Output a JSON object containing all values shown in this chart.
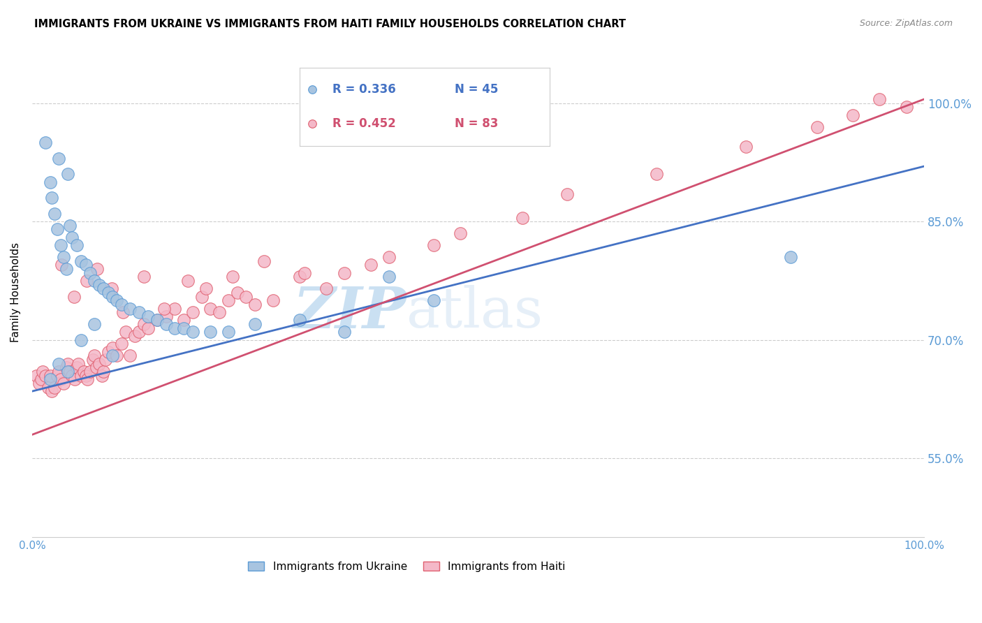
{
  "title": "IMMIGRANTS FROM UKRAINE VS IMMIGRANTS FROM HAITI FAMILY HOUSEHOLDS CORRELATION CHART",
  "source": "Source: ZipAtlas.com",
  "ylabel": "Family Households",
  "y_ticks_right": [
    55.0,
    70.0,
    85.0,
    100.0
  ],
  "x_range": [
    0.0,
    100.0
  ],
  "y_range": [
    45.0,
    107.0
  ],
  "ukraine_color": "#a8c4e0",
  "ukraine_edge_color": "#5b9bd5",
  "haiti_color": "#f4b8c8",
  "haiti_edge_color": "#e06070",
  "line_ukraine_color": "#4472c4",
  "line_haiti_color": "#d05070",
  "legend_R_ukraine": "R = 0.336",
  "legend_N_ukraine": "N = 45",
  "legend_R_haiti": "R = 0.452",
  "legend_N_haiti": "N = 83",
  "ukraine_x": [
    1.5,
    2.0,
    2.2,
    2.5,
    2.8,
    3.0,
    3.2,
    3.5,
    3.8,
    4.0,
    4.2,
    4.5,
    5.0,
    5.5,
    6.0,
    6.5,
    7.0,
    7.5,
    8.0,
    8.5,
    9.0,
    9.5,
    10.0,
    11.0,
    12.0,
    13.0,
    14.0,
    15.0,
    16.0,
    17.0,
    18.0,
    20.0,
    22.0,
    25.0,
    30.0,
    35.0,
    40.0,
    45.0,
    85.0,
    2.0,
    3.0,
    4.0,
    5.5,
    7.0,
    9.0
  ],
  "ukraine_y": [
    95.0,
    90.0,
    88.0,
    86.0,
    84.0,
    93.0,
    82.0,
    80.5,
    79.0,
    91.0,
    84.5,
    83.0,
    82.0,
    80.0,
    79.5,
    78.5,
    77.5,
    77.0,
    76.5,
    76.0,
    75.5,
    75.0,
    74.5,
    74.0,
    73.5,
    73.0,
    72.5,
    72.0,
    71.5,
    71.5,
    71.0,
    71.0,
    71.0,
    72.0,
    72.5,
    71.0,
    78.0,
    75.0,
    80.5,
    65.0,
    67.0,
    66.0,
    70.0,
    72.0,
    68.0
  ],
  "haiti_x": [
    0.5,
    0.8,
    1.0,
    1.2,
    1.5,
    1.8,
    2.0,
    2.2,
    2.5,
    2.8,
    3.0,
    3.2,
    3.5,
    3.8,
    4.0,
    4.2,
    4.5,
    4.8,
    5.0,
    5.2,
    5.5,
    5.8,
    6.0,
    6.2,
    6.5,
    6.8,
    7.0,
    7.2,
    7.5,
    7.8,
    8.0,
    8.2,
    8.5,
    9.0,
    9.5,
    10.0,
    10.5,
    11.0,
    11.5,
    12.0,
    12.5,
    13.0,
    14.0,
    15.0,
    16.0,
    17.0,
    18.0,
    19.0,
    20.0,
    21.0,
    22.0,
    23.0,
    24.0,
    25.0,
    27.0,
    30.0,
    33.0,
    35.0,
    38.0,
    40.0,
    45.0,
    48.0,
    55.0,
    60.0,
    70.0,
    80.0,
    88.0,
    92.0,
    95.0,
    98.0,
    3.3,
    4.7,
    6.1,
    7.3,
    8.9,
    10.2,
    12.5,
    14.8,
    17.5,
    19.5,
    22.5,
    26.0,
    30.5
  ],
  "haiti_y": [
    65.5,
    64.5,
    65.0,
    66.0,
    65.5,
    64.0,
    65.5,
    63.5,
    64.0,
    65.5,
    66.0,
    65.0,
    64.5,
    66.5,
    67.0,
    66.0,
    65.5,
    65.0,
    66.5,
    67.0,
    65.5,
    66.0,
    65.5,
    65.0,
    66.0,
    67.5,
    68.0,
    66.5,
    67.0,
    65.5,
    66.0,
    67.5,
    68.5,
    69.0,
    68.0,
    69.5,
    71.0,
    68.0,
    70.5,
    71.0,
    72.0,
    71.5,
    72.5,
    73.0,
    74.0,
    72.5,
    73.5,
    75.5,
    74.0,
    73.5,
    75.0,
    76.0,
    75.5,
    74.5,
    75.0,
    78.0,
    76.5,
    78.5,
    79.5,
    80.5,
    82.0,
    83.5,
    85.5,
    88.5,
    91.0,
    94.5,
    97.0,
    98.5,
    100.5,
    99.5,
    79.5,
    75.5,
    77.5,
    79.0,
    76.5,
    73.5,
    78.0,
    74.0,
    77.5,
    76.5,
    78.0,
    80.0,
    78.5
  ],
  "watermark_zip": "ZIP",
  "watermark_atlas": "atlas",
  "background_color": "#ffffff",
  "grid_color": "#cccccc",
  "axis_label_color": "#5b9bd5",
  "tick_color": "#5b9bd5",
  "blue_line_y0": 63.5,
  "blue_line_y1": 92.0,
  "pink_line_y0": 58.0,
  "pink_line_y1": 100.5
}
